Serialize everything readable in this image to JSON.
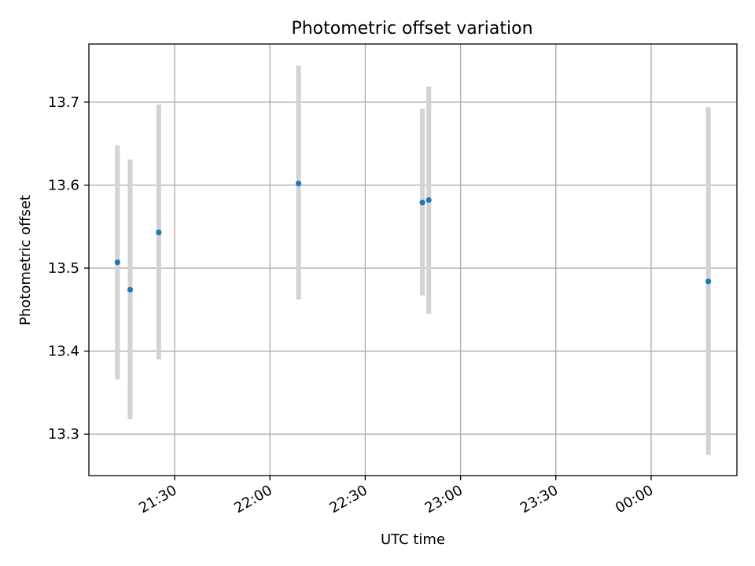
{
  "chart_data": {
    "type": "scatter",
    "title": "Photometric offset variation",
    "xlabel": "UTC time",
    "ylabel": "Photometric offset",
    "x_ticks": [
      "21:30",
      "22:00",
      "22:30",
      "23:00",
      "23:30",
      "00:00"
    ],
    "x_tick_times": [
      "21:30",
      "22:00",
      "22:30",
      "23:00",
      "23:30",
      "00:00"
    ],
    "y_ticks": [
      "13.3",
      "13.4",
      "13.5",
      "13.6",
      "13.7"
    ],
    "xlim": [
      "21:03",
      "00:27"
    ],
    "ylim": [
      13.25,
      13.77
    ],
    "grid": true,
    "marker_color": "#1f77b4",
    "errorbar_color": "#d3d3d3",
    "series": [
      {
        "x": [
          "21:12",
          "21:16",
          "21:25",
          "22:09",
          "22:48",
          "22:50",
          "00:18"
        ],
        "y": [
          13.507,
          13.474,
          13.543,
          13.602,
          13.579,
          13.582,
          13.484
        ],
        "yerr_low": [
          13.366,
          13.318,
          13.39,
          13.462,
          13.467,
          13.445,
          13.275
        ],
        "yerr_high": [
          13.648,
          13.631,
          13.697,
          13.744,
          13.692,
          13.719,
          13.694
        ]
      }
    ]
  }
}
